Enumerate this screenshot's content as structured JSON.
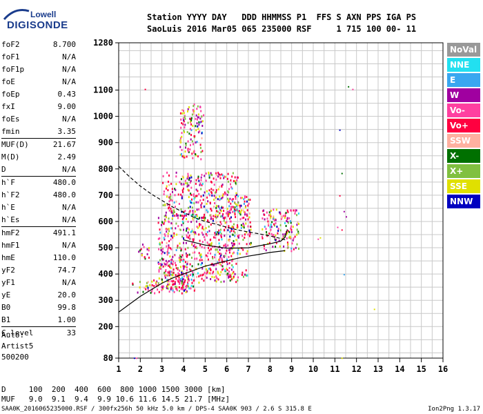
{
  "logo": {
    "top": "Lowell",
    "bottom": "DIGISONDE"
  },
  "header": {
    "line1": "Station YYYY DAY   DDD HHMMSS P1  FFS S AXN PPS IGA PS",
    "line2": "SaoLuis 2016 Mar05 065 235000 RSF     1 715 100 00- 11"
  },
  "params_groups": [
    [
      [
        "foF2",
        "8.700"
      ],
      [
        "foF1",
        "N/A"
      ],
      [
        "foF1p",
        "N/A"
      ],
      [
        "foE",
        "N/A"
      ],
      [
        "foEp",
        "0.43"
      ],
      [
        "fxI",
        "9.00"
      ],
      [
        "foEs",
        "N/A"
      ],
      [
        "fmin",
        "3.35"
      ]
    ],
    [
      [
        "MUF(D)",
        "21.67"
      ],
      [
        "M(D)",
        "2.49"
      ],
      [
        "D",
        "N/A"
      ]
    ],
    [
      [
        "h`F",
        "480.0"
      ],
      [
        "h`F2",
        "480.0"
      ],
      [
        "h`E",
        "N/A"
      ],
      [
        "h`Es",
        "N/A"
      ]
    ],
    [
      [
        "hmF2",
        "491.1"
      ],
      [
        "hmF1",
        "N/A"
      ],
      [
        "hmE",
        "110.0"
      ],
      [
        "yF2",
        "74.7"
      ],
      [
        "yF1",
        "N/A"
      ],
      [
        "yE",
        "20.0"
      ],
      [
        "B0",
        "99.8"
      ],
      [
        "B1",
        "1.00"
      ]
    ],
    [
      [
        "C-level",
        "33"
      ]
    ]
  ],
  "auto_lines": [
    "Auto:",
    "Artist5",
    "500200"
  ],
  "legend": [
    {
      "label": "NoVal",
      "color": "#999999"
    },
    {
      "label": "NNE",
      "color": "#22e0f0"
    },
    {
      "label": "E",
      "color": "#39a7f0"
    },
    {
      "label": "W",
      "color": "#a000a0"
    },
    {
      "label": "Vo-",
      "color": "#ff40a0"
    },
    {
      "label": "Vo+",
      "color": "#ff0040"
    },
    {
      "label": "SSW",
      "color": "#ffb0a0"
    },
    {
      "label": "X-",
      "color": "#007000"
    },
    {
      "label": "X+",
      "color": "#80c040"
    },
    {
      "label": "SSE",
      "color": "#e0e000"
    },
    {
      "label": "NNW",
      "color": "#0000c0"
    }
  ],
  "bottom": {
    "d_line": "D     100  200  400  600  800 1000 1500 3000 [km]",
    "muf_line": "MUF   9.0  9.1  9.4  9.9 10.6 11.6 14.5 21.7 [MHz]"
  },
  "footer": {
    "left": "SAA0K_2016065235000.RSF / 300fx256h 50 kHz 5.0 km / DPS-4 SAA0K 903 / 2.6 S 315.8 E",
    "right": "Ion2Png 1.3.17"
  },
  "chart_data": {
    "type": "scatter",
    "xlim": [
      1,
      16
    ],
    "ylim": [
      80,
      1280
    ],
    "x_ticks": [
      1,
      2,
      3,
      4,
      5,
      6,
      7,
      8,
      9,
      10,
      11,
      12,
      13,
      14,
      15,
      16
    ],
    "y_ticks": [
      80,
      200,
      300,
      400,
      500,
      600,
      700,
      800,
      900,
      1000,
      1100,
      1280
    ],
    "grid": true,
    "traces": [
      {
        "style": "dashed",
        "points": [
          [
            1.0,
            810
          ],
          [
            1.5,
            770
          ],
          [
            2.0,
            735
          ],
          [
            2.5,
            705
          ],
          [
            3.0,
            680
          ],
          [
            3.5,
            655
          ],
          [
            4.0,
            635
          ],
          [
            4.5,
            615
          ],
          [
            5.0,
            600
          ],
          [
            5.5,
            590
          ],
          [
            6.0,
            578
          ],
          [
            6.5,
            568
          ],
          [
            7.0,
            560
          ],
          [
            7.5,
            553
          ],
          [
            8.0,
            545
          ],
          [
            8.5,
            535
          ],
          [
            8.7,
            530
          ]
        ]
      },
      {
        "style": "solid",
        "points": [
          [
            1.0,
            255
          ],
          [
            1.5,
            285
          ],
          [
            2.0,
            315
          ],
          [
            2.5,
            340
          ],
          [
            3.0,
            365
          ],
          [
            3.5,
            385
          ],
          [
            4.0,
            400
          ],
          [
            4.5,
            415
          ],
          [
            5.0,
            430
          ],
          [
            5.5,
            440
          ],
          [
            6.0,
            450
          ],
          [
            6.5,
            460
          ],
          [
            7.0,
            468
          ],
          [
            7.5,
            475
          ],
          [
            8.0,
            482
          ],
          [
            8.5,
            487
          ],
          [
            8.7,
            489
          ]
        ]
      },
      {
        "style": "solid",
        "points": [
          [
            4.0,
            530
          ],
          [
            5.0,
            510
          ],
          [
            6.0,
            498
          ],
          [
            7.0,
            500
          ],
          [
            8.0,
            515
          ],
          [
            8.5,
            525
          ],
          [
            8.7,
            540
          ],
          [
            8.8,
            570
          ]
        ]
      }
    ],
    "clusters": [
      {
        "x": [
          1.6,
          4.5
        ],
        "y": [
          330,
          380
        ]
      },
      {
        "x": [
          2.8,
          4.2
        ],
        "y": [
          330,
          460
        ]
      },
      {
        "x": [
          3.0,
          6.5
        ],
        "y": [
          370,
          460
        ]
      },
      {
        "x": [
          1.9,
          2.4
        ],
        "y": [
          460,
          520
        ]
      },
      {
        "x": [
          2.8,
          6.3
        ],
        "y": [
          460,
          620
        ]
      },
      {
        "x": [
          3.0,
          6.5
        ],
        "y": [
          620,
          790
        ]
      },
      {
        "x": [
          3.8,
          4.9
        ],
        "y": [
          840,
          1050
        ]
      },
      {
        "x": [
          6.0,
          7.1
        ],
        "y": [
          480,
          700
        ]
      },
      {
        "x": [
          7.6,
          9.3
        ],
        "y": [
          490,
          650
        ]
      },
      {
        "x": [
          6.0,
          7.0
        ],
        "y": [
          390,
          420
        ]
      }
    ],
    "scattered_points": [
      [
        2.2,
        1105
      ],
      [
        11.6,
        1115
      ],
      [
        11.8,
        1105
      ],
      [
        11.2,
        950
      ],
      [
        11.3,
        785
      ],
      [
        11.2,
        700
      ],
      [
        11.4,
        640
      ],
      [
        11.5,
        620
      ],
      [
        11.1,
        580
      ],
      [
        11.3,
        570
      ],
      [
        11.4,
        400
      ],
      [
        12.8,
        268
      ],
      [
        11.3,
        82
      ],
      [
        1.7,
        82
      ],
      [
        1.8,
        82
      ],
      [
        10.2,
        535
      ],
      [
        10.3,
        540
      ]
    ]
  }
}
